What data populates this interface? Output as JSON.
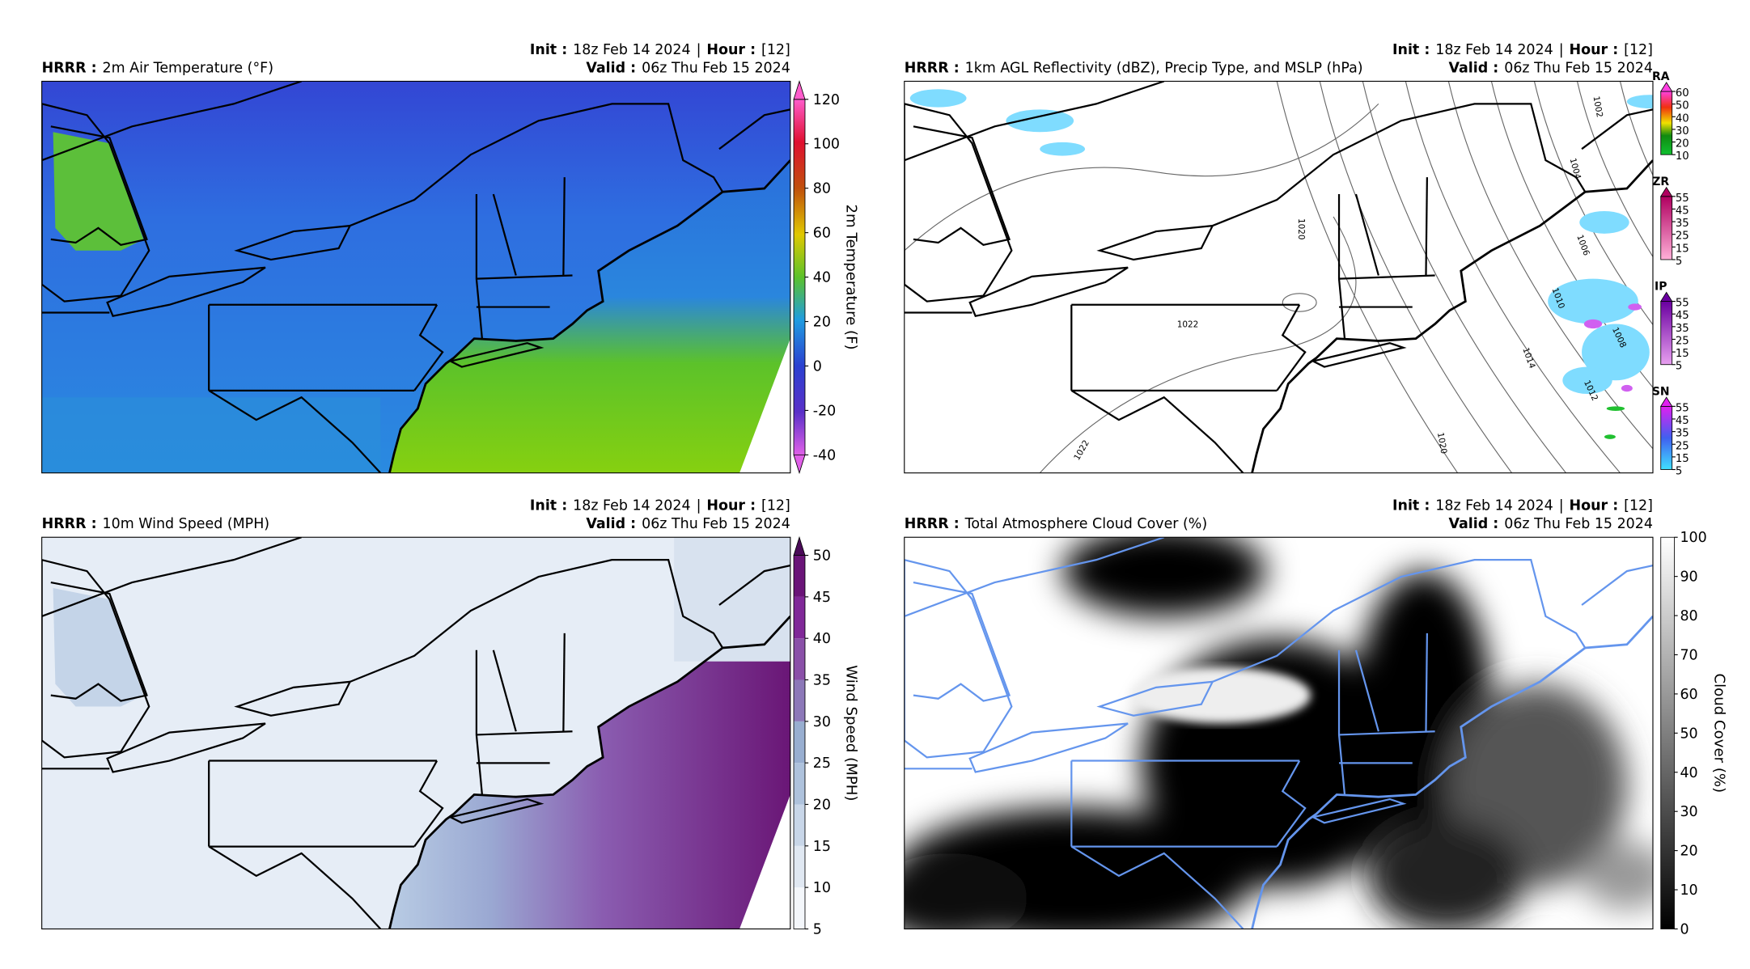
{
  "panels": [
    {
      "model": "HRRR :",
      "title": "2m Air Temperature (°F)",
      "init_label": "Init :",
      "init": "18z Feb 14 2024",
      "separator": "|",
      "hour_label": "Hour :",
      "hour": "[12]",
      "valid_label": "Valid :",
      "valid": "06z Thu Feb 15 2024",
      "colorbar": {
        "label": "2m Temperature (F)",
        "ticks": [
          120,
          100,
          80,
          60,
          40,
          20,
          0,
          -20,
          -40
        ]
      }
    },
    {
      "model": "HRRR :",
      "title": "1km AGL Reflectivity (dBZ), Precip Type, and MSLP (hPa)",
      "init_label": "Init :",
      "init": "18z Feb 14 2024",
      "separator": "|",
      "hour_label": "Hour :",
      "hour": "[12]",
      "valid_label": "Valid :",
      "valid": "06z Thu Feb 15 2024",
      "precip_colorbars": [
        {
          "label": "RA",
          "ticks": [
            60,
            50,
            40,
            30,
            20,
            10
          ]
        },
        {
          "label": "ZR",
          "ticks": [
            55,
            45,
            35,
            25,
            15,
            5
          ]
        },
        {
          "label": "IP",
          "ticks": [
            55,
            45,
            35,
            25,
            15,
            5
          ]
        },
        {
          "label": "SN",
          "ticks": [
            55,
            45,
            35,
            25,
            15,
            5
          ]
        }
      ],
      "contour_labels": [
        "1002",
        "1004",
        "1006",
        "1010",
        "1008",
        "1014",
        "1012",
        "1020",
        "1020",
        "1022",
        "1022"
      ]
    },
    {
      "model": "HRRR :",
      "title": "10m Wind Speed (MPH)",
      "init_label": "Init :",
      "init": "18z Feb 14 2024",
      "separator": "|",
      "hour_label": "Hour :",
      "hour": "[12]",
      "valid_label": "Valid :",
      "valid": "06z Thu Feb 15 2024",
      "colorbar": {
        "label": "Wind Speed (MPH)",
        "ticks": [
          50,
          45,
          40,
          35,
          30,
          25,
          20,
          15,
          10,
          5
        ]
      }
    },
    {
      "model": "HRRR :",
      "title": "Total Atmosphere Cloud Cover (%)",
      "init_label": "Init :",
      "init": "18z Feb 14 2024",
      "separator": "|",
      "hour_label": "Hour :",
      "hour": "[12]",
      "valid_label": "Valid :",
      "valid": "06z Thu Feb 15 2024",
      "colorbar": {
        "label": "Cloud Cover (%)",
        "ticks": [
          100,
          90,
          80,
          70,
          60,
          50,
          40,
          30,
          20,
          10,
          0
        ]
      }
    }
  ]
}
